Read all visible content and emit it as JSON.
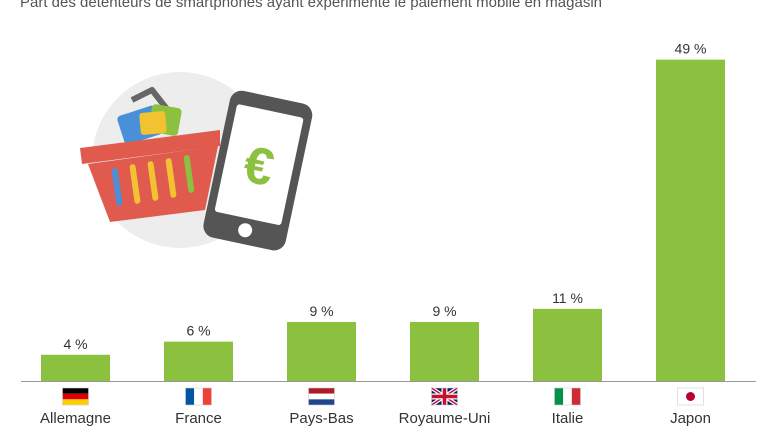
{
  "subtitle": "Part des détenteurs de smartphones ayant expérimenté le paiement mobile en magasin",
  "illustration": {
    "basket_icon": "shopping-basket-icon",
    "phone_icon": "smartphone-euro-icon",
    "phone_symbol": "€"
  },
  "colors": {
    "bar": "#8cc13f",
    "axis": "#999999",
    "text": "#333333",
    "basket": "#e05a4e",
    "phone": "#555555"
  },
  "chart_data": {
    "type": "bar",
    "categories": [
      "Allemagne",
      "France",
      "Pays-Bas",
      "Royaume-Uni",
      "Italie",
      "Japon"
    ],
    "values": [
      4,
      6,
      9,
      9,
      11,
      49
    ],
    "value_labels": [
      "4 %",
      "6 %",
      "9 %",
      "9 %",
      "11 %",
      "49 %"
    ],
    "flags": [
      "flag-de-icon",
      "flag-fr-icon",
      "flag-nl-icon",
      "flag-gb-icon",
      "flag-it-icon",
      "flag-jp-icon"
    ],
    "unit": "%",
    "ylim": [
      0,
      52
    ],
    "grid": false,
    "title": "",
    "xlabel": "",
    "ylabel": ""
  }
}
